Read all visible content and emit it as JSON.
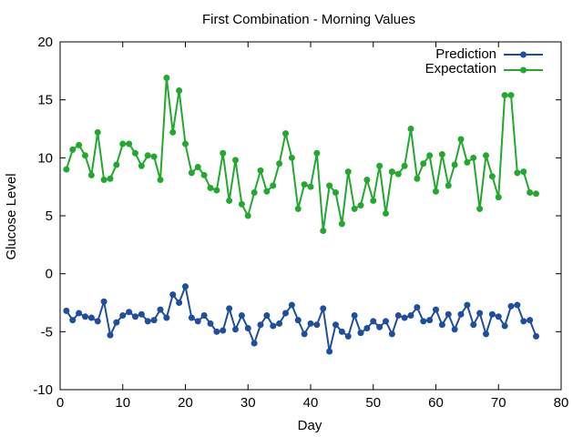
{
  "chart_data": {
    "type": "line",
    "title": "First Combination - Morning Values",
    "xlabel": "Day",
    "ylabel": "Glucose Level",
    "xlim": [
      0,
      80
    ],
    "ylim": [
      -10,
      20
    ],
    "xticks": [
      0,
      10,
      20,
      30,
      40,
      50,
      60,
      70,
      80
    ],
    "yticks": [
      -10,
      -5,
      0,
      5,
      10,
      15,
      20
    ],
    "grid": false,
    "legend_position": "top-right",
    "series": [
      {
        "name": "Prediction",
        "color": "#1f4e9e",
        "x": [
          1,
          2,
          3,
          4,
          5,
          6,
          7,
          8,
          9,
          10,
          11,
          12,
          13,
          14,
          15,
          16,
          17,
          18,
          19,
          20,
          21,
          22,
          23,
          24,
          25,
          26,
          27,
          28,
          29,
          30,
          31,
          32,
          33,
          34,
          35,
          36,
          37,
          38,
          39,
          40,
          41,
          42,
          43,
          44,
          45,
          46,
          47,
          48,
          49,
          50,
          51,
          52,
          53,
          54,
          55,
          56,
          57,
          58,
          59,
          60,
          61,
          62,
          63,
          64,
          65,
          66,
          67,
          68,
          69,
          70,
          71,
          72,
          73,
          74,
          75,
          76
        ],
        "values": [
          -3.2,
          -4.0,
          -3.4,
          -3.7,
          -3.8,
          -4.1,
          -2.4,
          -5.3,
          -4.2,
          -3.6,
          -3.3,
          -3.7,
          -3.5,
          -4.1,
          -4.0,
          -3.1,
          -3.8,
          -1.8,
          -2.5,
          -1.1,
          -3.8,
          -4.1,
          -3.6,
          -4.3,
          -5.0,
          -4.9,
          -3.0,
          -4.8,
          -3.6,
          -4.7,
          -6.0,
          -4.4,
          -3.6,
          -4.5,
          -4.3,
          -3.4,
          -2.7,
          -4.0,
          -5.2,
          -4.3,
          -4.4,
          -3.0,
          -6.7,
          -4.4,
          -5.0,
          -5.4,
          -3.6,
          -5.1,
          -4.7,
          -4.1,
          -4.6,
          -4.1,
          -5.2,
          -3.6,
          -3.8,
          -3.6,
          -2.9,
          -4.1,
          -4.0,
          -3.1,
          -4.4,
          -3.5,
          -4.8,
          -3.5,
          -2.7,
          -4.4,
          -3.4,
          -5.2,
          -3.5,
          -3.7,
          -4.5,
          -2.8,
          -2.7,
          -4.1,
          -4.0,
          -5.4
        ]
      },
      {
        "name": "Expectation",
        "color": "#22a82f",
        "x": [
          1,
          2,
          3,
          4,
          5,
          6,
          7,
          8,
          9,
          10,
          11,
          12,
          13,
          14,
          15,
          16,
          17,
          18,
          19,
          20,
          21,
          22,
          23,
          24,
          25,
          26,
          27,
          28,
          29,
          30,
          31,
          32,
          33,
          34,
          35,
          36,
          37,
          38,
          39,
          40,
          41,
          42,
          43,
          44,
          45,
          46,
          47,
          48,
          49,
          50,
          51,
          52,
          53,
          54,
          55,
          56,
          57,
          58,
          59,
          60,
          61,
          62,
          63,
          64,
          65,
          66,
          67,
          68,
          69,
          70,
          71,
          72,
          73,
          74,
          75,
          76
        ],
        "values": [
          9.0,
          10.7,
          11.1,
          10.2,
          8.5,
          12.2,
          8.1,
          8.2,
          9.4,
          11.2,
          11.2,
          10.4,
          9.3,
          10.2,
          10.1,
          8.1,
          16.9,
          12.2,
          15.8,
          11.2,
          8.7,
          9.2,
          8.5,
          7.4,
          7.2,
          10.4,
          6.3,
          9.8,
          6.0,
          5.0,
          7.0,
          8.9,
          7.1,
          7.6,
          9.5,
          12.1,
          10.0,
          5.6,
          7.7,
          7.5,
          10.4,
          3.7,
          7.6,
          7.0,
          4.3,
          8.8,
          5.6,
          5.9,
          8.1,
          6.3,
          9.3,
          5.2,
          8.8,
          8.6,
          9.3,
          12.5,
          8.2,
          9.5,
          10.2,
          7.1,
          10.3,
          7.6,
          9.4,
          11.6,
          9.6,
          10.0,
          5.6,
          10.2,
          8.4,
          6.6,
          15.4,
          15.4,
          8.7,
          8.8,
          7.0,
          6.9
        ]
      }
    ]
  }
}
